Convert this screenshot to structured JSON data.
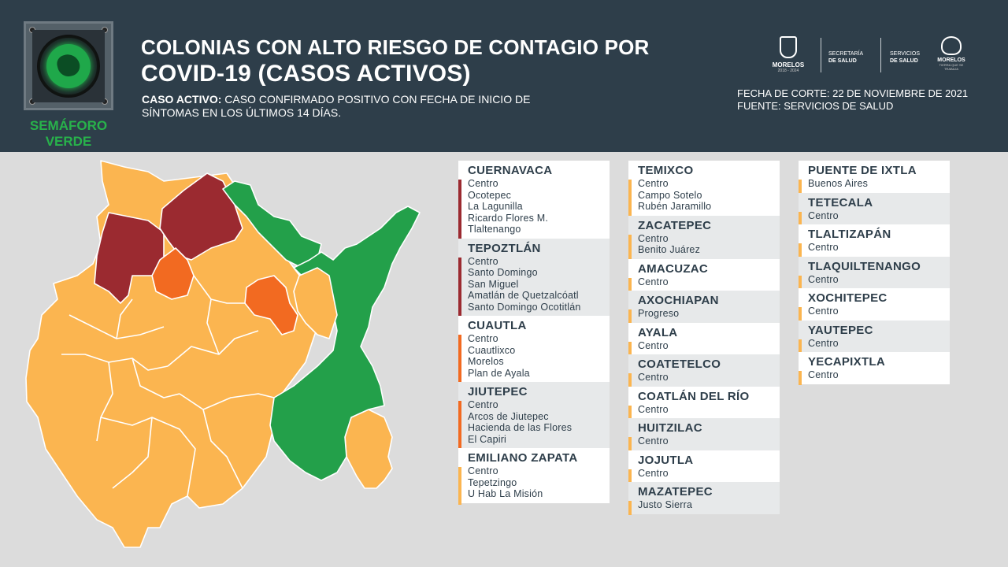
{
  "header": {
    "title_line1": "COLONIAS CON ALTO RIESGO DE CONTAGIO POR",
    "title_line2": "COVID-19 (CASOS ACTIVOS)",
    "definition_label": "CASO ACTIVO:",
    "definition_text": " CASO CONFIRMADO POSITIVO CON FECHA DE INICIO DE SÍNTOMAS EN LOS ÚLTIMOS 14 DÍAS.",
    "semaforo_line1": "SEMÁFORO",
    "semaforo_line2": "VERDE",
    "fecha_corte": "FECHA DE CORTE: 22 DE NOVIEMBRE DE 2021",
    "fuente": "FUENTE: SERVICIOS DE SALUD",
    "logo_morelos": "MORELOS",
    "logo_morelos_years": "2018 - 2024",
    "logo_secretaria_1": "SECRETARÍA",
    "logo_secretaria_2": "DE SALUD",
    "logo_servicios_1": "SERVICIOS",
    "logo_servicios_2": "DE SALUD",
    "logo_morelos_2": "MORELOS",
    "logo_morelos_2_sub": "TIERRA QUE SE TRABAJA"
  },
  "colors": {
    "dark_red": "#9b2a30",
    "orange": "#f26a21",
    "light_orange": "#fbb550",
    "green": "#23a04a",
    "header_bg": "#2e3e4a"
  },
  "columns": [
    [
      {
        "municipio": "CUERNAVACA",
        "risk": "dark_red",
        "colonias": [
          "Centro",
          "Ocotepec",
          "La Lagunilla",
          "Ricardo Flores M.",
          "Tlaltenango"
        ]
      },
      {
        "municipio": "TEPOZTLÁN",
        "risk": "dark_red",
        "colonias": [
          "Centro",
          "Santo Domingo",
          "San Miguel",
          "Amatlán de Quetzalcóatl",
          "Santo Domingo Ocotitlán"
        ]
      },
      {
        "municipio": "CUAUTLA",
        "risk": "orange",
        "colonias": [
          "Centro",
          "Cuautlixco",
          "Morelos",
          "Plan de Ayala"
        ]
      },
      {
        "municipio": "JIUTEPEC",
        "risk": "orange",
        "colonias": [
          "Centro",
          "Arcos de Jiutepec",
          "Hacienda de las Flores",
          "El Capiri"
        ]
      },
      {
        "municipio": "EMILIANO ZAPATA",
        "risk": "light_orange",
        "colonias": [
          "Centro",
          "Tepetzingo",
          "U Hab La Misión"
        ]
      }
    ],
    [
      {
        "municipio": "TEMIXCO",
        "risk": "light_orange",
        "colonias": [
          "Centro",
          "Campo Sotelo",
          "Rubén Jaramillo"
        ]
      },
      {
        "municipio": "ZACATEPEC",
        "risk": "light_orange",
        "colonias": [
          "Centro",
          "Benito Juárez"
        ]
      },
      {
        "municipio": "AMACUZAC",
        "risk": "light_orange",
        "colonias": [
          "Centro"
        ]
      },
      {
        "municipio": "AXOCHIAPAN",
        "risk": "light_orange",
        "colonias": [
          "Progreso"
        ]
      },
      {
        "municipio": "AYALA",
        "risk": "light_orange",
        "colonias": [
          "Centro"
        ]
      },
      {
        "municipio": "COATETELCO",
        "risk": "light_orange",
        "colonias": [
          "Centro"
        ]
      },
      {
        "municipio": "COATLÁN DEL RÍO",
        "risk": "light_orange",
        "colonias": [
          "Centro"
        ]
      },
      {
        "municipio": "HUITZILAC",
        "risk": "light_orange",
        "colonias": [
          "Centro"
        ]
      },
      {
        "municipio": "JOJUTLA",
        "risk": "light_orange",
        "colonias": [
          "Centro"
        ]
      },
      {
        "municipio": "MAZATEPEC",
        "risk": "light_orange",
        "colonias": [
          "Justo Sierra"
        ]
      }
    ],
    [
      {
        "municipio": "PUENTE DE IXTLA",
        "risk": "light_orange",
        "colonias": [
          "Buenos Aires"
        ]
      },
      {
        "municipio": "TETECALA",
        "risk": "light_orange",
        "colonias": [
          "Centro"
        ]
      },
      {
        "municipio": "TLALTIZAPÁN",
        "risk": "light_orange",
        "colonias": [
          "Centro"
        ]
      },
      {
        "municipio": "TLAQUILTENANGO",
        "risk": "light_orange",
        "colonias": [
          "Centro"
        ]
      },
      {
        "municipio": "XOCHITEPEC",
        "risk": "light_orange",
        "colonias": [
          "Centro"
        ]
      },
      {
        "municipio": "YAUTEPEC",
        "risk": "light_orange",
        "colonias": [
          "Centro"
        ]
      },
      {
        "municipio": "YECAPIXTLA",
        "risk": "light_orange",
        "colonias": [
          "Centro"
        ]
      }
    ]
  ]
}
